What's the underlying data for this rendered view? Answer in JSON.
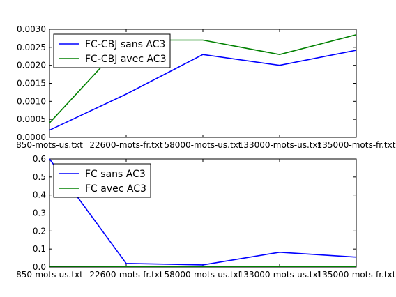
{
  "chart_data": [
    {
      "type": "line",
      "categories": [
        "850-mots-us.txt",
        "22600-mots-fr.txt",
        "58000-mots-us.txt",
        "133000-mots-us.txt",
        "135000-mots-fr.txt"
      ],
      "ylim": [
        0,
        0.003
      ],
      "yticks": [
        "0.0000",
        "0.0005",
        "0.0010",
        "0.0015",
        "0.0020",
        "0.0025",
        "0.0030"
      ],
      "series": [
        {
          "name": "FC-CBJ sans AC3",
          "color": "#0000ff",
          "values": [
            0.0002,
            0.0012,
            0.0023,
            0.002,
            0.00242
          ]
        },
        {
          "name": "FC-CBJ avec AC3",
          "color": "#008000",
          "values": [
            0.0004,
            0.0027,
            0.0027,
            0.0023,
            0.00285
          ]
        }
      ],
      "legend": "top-left",
      "grid": false
    },
    {
      "type": "line",
      "categories": [
        "850-mots-us.txt",
        "22600-mots-fr.txt",
        "58000-mots-us.txt",
        "133000-mots-us.txt",
        "135000-mots-fr.txt"
      ],
      "ylim": [
        0,
        0.6
      ],
      "yticks": [
        "0.0",
        "0.1",
        "0.2",
        "0.3",
        "0.4",
        "0.5",
        "0.6"
      ],
      "series": [
        {
          "name": "FC sans AC3",
          "color": "#0000ff",
          "values": [
            0.6,
            0.02,
            0.012,
            0.082,
            0.055
          ]
        },
        {
          "name": "FC avec AC3",
          "color": "#008000",
          "values": [
            0.004,
            0.003,
            0.003,
            0.003,
            0.003
          ]
        }
      ],
      "legend": "top-left",
      "grid": false
    }
  ]
}
